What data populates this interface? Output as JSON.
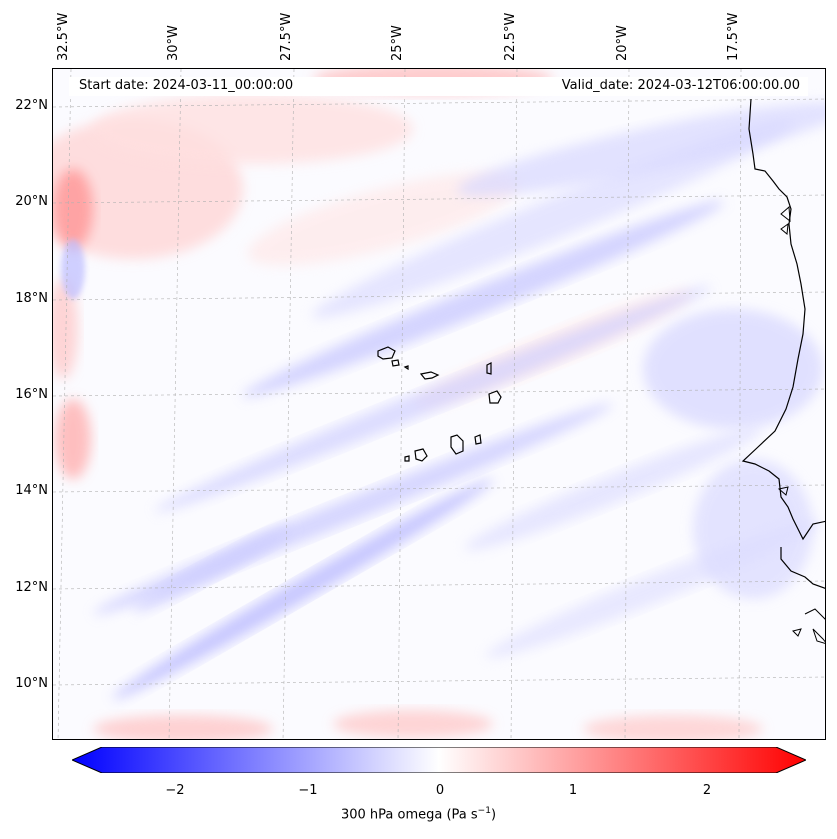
{
  "header": {
    "start_date": "Start date: 2024-03-11_00:00:00",
    "valid_date": "Valid_date: 2024-03-12T06:00:00.00"
  },
  "map": {
    "longitude_labels": [
      "32.5°W",
      "30°W",
      "27.5°W",
      "25°W",
      "22.5°W",
      "20°W",
      "17.5°W"
    ],
    "latitude_labels": [
      "22°N",
      "20°N",
      "18°N",
      "16°N",
      "14°N",
      "12°N",
      "10°N"
    ],
    "field": "300 hPa omega",
    "colormap": [
      "#0000ff",
      "#ffffff",
      "#ff0000"
    ]
  },
  "colorbar": {
    "ticks": [
      "−2",
      "−1",
      "0",
      "1",
      "2"
    ],
    "label_main": "300 hPa omega (Pa s",
    "label_sup": "−1",
    "label_close": ")",
    "vmin": -2.75,
    "vmax": 2.75
  }
}
